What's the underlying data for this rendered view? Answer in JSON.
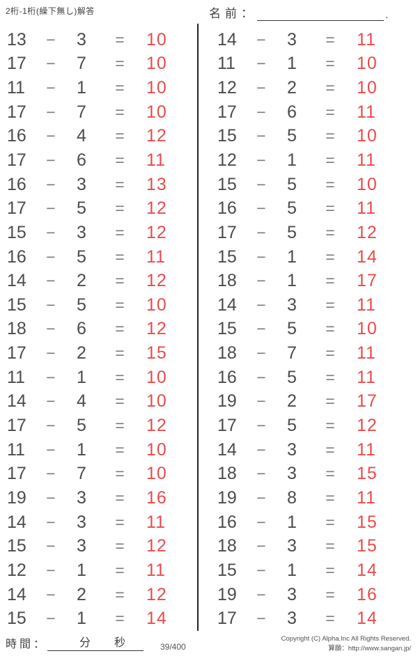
{
  "header": {
    "title": "2桁-1桁(繰下無し)解答",
    "name_label": "名前：",
    "name_suffix": "."
  },
  "symbols": {
    "minus": "−",
    "equals": "="
  },
  "problems": {
    "left": [
      {
        "minuend": "13",
        "subtrahend": "3",
        "answer": "10"
      },
      {
        "minuend": "17",
        "subtrahend": "7",
        "answer": "10"
      },
      {
        "minuend": "11",
        "subtrahend": "1",
        "answer": "10"
      },
      {
        "minuend": "17",
        "subtrahend": "7",
        "answer": "10"
      },
      {
        "minuend": "16",
        "subtrahend": "4",
        "answer": "12"
      },
      {
        "minuend": "17",
        "subtrahend": "6",
        "answer": "11"
      },
      {
        "minuend": "16",
        "subtrahend": "3",
        "answer": "13"
      },
      {
        "minuend": "17",
        "subtrahend": "5",
        "answer": "12"
      },
      {
        "minuend": "15",
        "subtrahend": "3",
        "answer": "12"
      },
      {
        "minuend": "16",
        "subtrahend": "5",
        "answer": "11"
      },
      {
        "minuend": "14",
        "subtrahend": "2",
        "answer": "12"
      },
      {
        "minuend": "15",
        "subtrahend": "5",
        "answer": "10"
      },
      {
        "minuend": "18",
        "subtrahend": "6",
        "answer": "12"
      },
      {
        "minuend": "17",
        "subtrahend": "2",
        "answer": "15"
      },
      {
        "minuend": "11",
        "subtrahend": "1",
        "answer": "10"
      },
      {
        "minuend": "14",
        "subtrahend": "4",
        "answer": "10"
      },
      {
        "minuend": "17",
        "subtrahend": "5",
        "answer": "12"
      },
      {
        "minuend": "11",
        "subtrahend": "1",
        "answer": "10"
      },
      {
        "minuend": "17",
        "subtrahend": "7",
        "answer": "10"
      },
      {
        "minuend": "19",
        "subtrahend": "3",
        "answer": "16"
      },
      {
        "minuend": "14",
        "subtrahend": "3",
        "answer": "11"
      },
      {
        "minuend": "15",
        "subtrahend": "3",
        "answer": "12"
      },
      {
        "minuend": "12",
        "subtrahend": "1",
        "answer": "11"
      },
      {
        "minuend": "14",
        "subtrahend": "2",
        "answer": "12"
      },
      {
        "minuend": "15",
        "subtrahend": "1",
        "answer": "14"
      }
    ],
    "right": [
      {
        "minuend": "14",
        "subtrahend": "3",
        "answer": "11"
      },
      {
        "minuend": "11",
        "subtrahend": "1",
        "answer": "10"
      },
      {
        "minuend": "12",
        "subtrahend": "2",
        "answer": "10"
      },
      {
        "minuend": "17",
        "subtrahend": "6",
        "answer": "11"
      },
      {
        "minuend": "15",
        "subtrahend": "5",
        "answer": "10"
      },
      {
        "minuend": "12",
        "subtrahend": "1",
        "answer": "11"
      },
      {
        "minuend": "15",
        "subtrahend": "5",
        "answer": "10"
      },
      {
        "minuend": "16",
        "subtrahend": "5",
        "answer": "11"
      },
      {
        "minuend": "17",
        "subtrahend": "5",
        "answer": "12"
      },
      {
        "minuend": "15",
        "subtrahend": "1",
        "answer": "14"
      },
      {
        "minuend": "18",
        "subtrahend": "1",
        "answer": "17"
      },
      {
        "minuend": "14",
        "subtrahend": "3",
        "answer": "11"
      },
      {
        "minuend": "15",
        "subtrahend": "5",
        "answer": "10"
      },
      {
        "minuend": "18",
        "subtrahend": "7",
        "answer": "11"
      },
      {
        "minuend": "16",
        "subtrahend": "5",
        "answer": "11"
      },
      {
        "minuend": "19",
        "subtrahend": "2",
        "answer": "17"
      },
      {
        "minuend": "17",
        "subtrahend": "5",
        "answer": "12"
      },
      {
        "minuend": "14",
        "subtrahend": "3",
        "answer": "11"
      },
      {
        "minuend": "18",
        "subtrahend": "3",
        "answer": "15"
      },
      {
        "minuend": "19",
        "subtrahend": "8",
        "answer": "11"
      },
      {
        "minuend": "16",
        "subtrahend": "1",
        "answer": "15"
      },
      {
        "minuend": "18",
        "subtrahend": "3",
        "answer": "15"
      },
      {
        "minuend": "15",
        "subtrahend": "1",
        "answer": "14"
      },
      {
        "minuend": "19",
        "subtrahend": "3",
        "answer": "16"
      },
      {
        "minuend": "17",
        "subtrahend": "3",
        "answer": "14"
      }
    ]
  },
  "footer": {
    "time_label": "時間：",
    "minutes_label": "分",
    "seconds_label": "秒",
    "page_counter": "39/400",
    "copyright": "Copyright (C) Alpha.Inc All Rights Reserved.",
    "site_credit": "算願：http://www.sangan.jp/"
  },
  "colors": {
    "ink": "#4c4c4c",
    "operator_gray": "#7b7b7b",
    "answer_red": "#e84b4b",
    "line_black": "#222222"
  }
}
